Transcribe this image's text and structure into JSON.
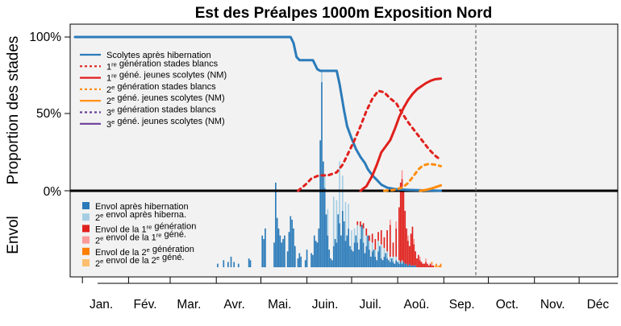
{
  "chart_data": {
    "type": "line",
    "title": "Est des Préalpes 1000m Exposition Nord",
    "ylabel_top": "Proportion des stades",
    "ylabel_bottom": "Envol",
    "ylim": [
      0,
      100
    ],
    "yticks": [
      "0%",
      "50%",
      "100%"
    ],
    "ytick_values": [
      0,
      50,
      100
    ],
    "x_domain_days": [
      0,
      365
    ],
    "months": [
      "Jan.",
      "Fév.",
      "Mar.",
      "Avr.",
      "Mai.",
      "Juin.",
      "Juil.",
      "Aoû.",
      "Sep.",
      "Oct.",
      "Nov.",
      "Déc"
    ],
    "current_day": 246,
    "grid": false,
    "panel_bg": "#f2f2f2",
    "line_legend": [
      {
        "main": "Scolytes après hibernation",
        "sup": "",
        "rest": "",
        "color": "#2b7bb9",
        "dash": false
      },
      {
        "main": "1",
        "sup": "re",
        "rest": " génération stades blancs",
        "color": "#e0201c",
        "dash": true
      },
      {
        "main": "1",
        "sup": "re",
        "rest": " géné. jeunes scolytes (NM)",
        "color": "#e0201c",
        "dash": false
      },
      {
        "main": "2",
        "sup": "e",
        "rest": " génération stades blancs",
        "color": "#ff8c0a",
        "dash": true
      },
      {
        "main": "2",
        "sup": "e",
        "rest": " géné. jeunes scolytes (NM)",
        "color": "#ff8c0a",
        "dash": false
      },
      {
        "main": "3",
        "sup": "e",
        "rest": " génération stades blancs",
        "color": "#6a3d9a",
        "dash": true
      },
      {
        "main": "3",
        "sup": "e",
        "rest": " géné. jeunes scolytes (NM)",
        "color": "#6a3d9a",
        "dash": false
      }
    ],
    "bar_legend": [
      {
        "main": "Envol après hibernation",
        "sup": "",
        "rest": "",
        "mid": "",
        "sup2": "",
        "rest2": "",
        "color": "#2b7bb9"
      },
      {
        "main": "2",
        "sup": "e",
        "rest": " envol après hiberna.",
        "mid": "",
        "sup2": "",
        "rest2": "",
        "color": "#a6cee3"
      },
      {
        "main": "Envol de la 1",
        "sup": "re",
        "rest": " génération",
        "mid": "",
        "sup2": "",
        "rest2": "",
        "color": "#e0201c"
      },
      {
        "main": "2",
        "sup": "e",
        "rest": " envol de la 1",
        "mid": "",
        "sup2": "re",
        "rest2": " géné.",
        "color": "#fb9a99"
      },
      {
        "main": "Envol de la 2",
        "sup": "e",
        "rest": " génération",
        "mid": "",
        "sup2": "",
        "rest2": "",
        "color": "#ff7f00"
      },
      {
        "main": "2",
        "sup": "e",
        "rest": " envol de la 2",
        "mid": "",
        "sup2": "e",
        "rest2": " géné.",
        "color": "#fdbf6f"
      }
    ],
    "series": [
      {
        "name": "Scolytes après hibernation",
        "color": "#2b7bb9",
        "dash": false,
        "points": [
          [
            0,
            100
          ],
          [
            60,
            100
          ],
          [
            100,
            100
          ],
          [
            145,
            100
          ],
          [
            147,
            96
          ],
          [
            149,
            87
          ],
          [
            151,
            85
          ],
          [
            160,
            85
          ],
          [
            163,
            79
          ],
          [
            165,
            78
          ],
          [
            176,
            78
          ],
          [
            178,
            69
          ],
          [
            181,
            52
          ],
          [
            183,
            42
          ],
          [
            186,
            34
          ],
          [
            189,
            27
          ],
          [
            192,
            22
          ],
          [
            195,
            18
          ],
          [
            197,
            14
          ],
          [
            200,
            10
          ],
          [
            203,
            7
          ],
          [
            206,
            4
          ],
          [
            210,
            2
          ],
          [
            216,
            1
          ],
          [
            225,
            0.5
          ],
          [
            246,
            0
          ]
        ]
      },
      {
        "name": "1re génération stades blancs",
        "color": "#e0201c",
        "dash": true,
        "points": [
          [
            150,
            0
          ],
          [
            155,
            4
          ],
          [
            159,
            8
          ],
          [
            164,
            10
          ],
          [
            170,
            10
          ],
          [
            176,
            12
          ],
          [
            180,
            17
          ],
          [
            184,
            25
          ],
          [
            188,
            33
          ],
          [
            192,
            42
          ],
          [
            196,
            52
          ],
          [
            200,
            60
          ],
          [
            204,
            65
          ],
          [
            208,
            64
          ],
          [
            212,
            60
          ],
          [
            216,
            57
          ],
          [
            219,
            52
          ],
          [
            223,
            46
          ],
          [
            226,
            42
          ],
          [
            230,
            37
          ],
          [
            234,
            32
          ],
          [
            238,
            27
          ],
          [
            242,
            23
          ],
          [
            246,
            20
          ]
        ]
      },
      {
        "name": "1re géné. jeunes scolytes (NM)",
        "color": "#e0201c",
        "dash": false,
        "points": [
          [
            192,
            0
          ],
          [
            196,
            3
          ],
          [
            200,
            10
          ],
          [
            203,
            17
          ],
          [
            206,
            25
          ],
          [
            209,
            29
          ],
          [
            212,
            33
          ],
          [
            215,
            40
          ],
          [
            218,
            48
          ],
          [
            221,
            54
          ],
          [
            224,
            59
          ],
          [
            227,
            63
          ],
          [
            230,
            66
          ],
          [
            233,
            68
          ],
          [
            236,
            70
          ],
          [
            239,
            71.5
          ],
          [
            242,
            72.5
          ],
          [
            246,
            73
          ]
        ]
      },
      {
        "name": "2e génération stades blancs",
        "color": "#ff8c0a",
        "dash": true,
        "points": [
          [
            208,
            0
          ],
          [
            214,
            0.5
          ],
          [
            220,
            2
          ],
          [
            224,
            5
          ],
          [
            228,
            10
          ],
          [
            231,
            14
          ],
          [
            234,
            16.5
          ],
          [
            238,
            17.5
          ],
          [
            242,
            17
          ],
          [
            246,
            16
          ]
        ]
      },
      {
        "name": "2e géné. jeunes scolytes (NM)",
        "color": "#ff8c0a",
        "dash": false,
        "points": [
          [
            232,
            0
          ],
          [
            236,
            0.5
          ],
          [
            240,
            1.5
          ],
          [
            243,
            2.5
          ],
          [
            246,
            3.5
          ]
        ]
      }
    ],
    "bars": {
      "max": 100,
      "emerge": [
        [
          96,
          2
        ],
        [
          100,
          4
        ],
        [
          103,
          3
        ],
        [
          105,
          6
        ],
        [
          107,
          3
        ],
        [
          110,
          2
        ],
        [
          117,
          5
        ],
        [
          118,
          4
        ],
        [
          126,
          18
        ],
        [
          127,
          16
        ],
        [
          128,
          22
        ],
        [
          134,
          14
        ],
        [
          135,
          48
        ],
        [
          136,
          28
        ],
        [
          137,
          22
        ],
        [
          138,
          18
        ],
        [
          139,
          14
        ],
        [
          140,
          16
        ],
        [
          141,
          18
        ],
        [
          143,
          9
        ],
        [
          144,
          20
        ],
        [
          145,
          29
        ],
        [
          146,
          27
        ],
        [
          147,
          22
        ],
        [
          148,
          12
        ],
        [
          150,
          5
        ],
        [
          151,
          8
        ],
        [
          152,
          6
        ],
        [
          155,
          4
        ],
        [
          156,
          10
        ],
        [
          159,
          8
        ],
        [
          160,
          7
        ],
        [
          161,
          18
        ],
        [
          162,
          15
        ],
        [
          163,
          14
        ],
        [
          164,
          22
        ],
        [
          165,
          72
        ],
        [
          166,
          105
        ],
        [
          167,
          60
        ],
        [
          168,
          45
        ],
        [
          169,
          30
        ],
        [
          170,
          18
        ],
        [
          171,
          10
        ],
        [
          172,
          5
        ],
        [
          173,
          4
        ],
        [
          174,
          12
        ],
        [
          175,
          16
        ],
        [
          176,
          14
        ],
        [
          177,
          30
        ],
        [
          178,
          25
        ],
        [
          179,
          18
        ],
        [
          180,
          32
        ],
        [
          181,
          26
        ],
        [
          182,
          15
        ],
        [
          183,
          18
        ],
        [
          184,
          22
        ],
        [
          185,
          12
        ],
        [
          186,
          10
        ],
        [
          187,
          9
        ],
        [
          188,
          14
        ],
        [
          189,
          18
        ],
        [
          190,
          14
        ],
        [
          191,
          10
        ],
        [
          192,
          16
        ],
        [
          193,
          24
        ],
        [
          194,
          14
        ],
        [
          195,
          8
        ],
        [
          196,
          12
        ],
        [
          197,
          18
        ],
        [
          198,
          10
        ],
        [
          199,
          6
        ],
        [
          200,
          9
        ],
        [
          201,
          10
        ],
        [
          202,
          6
        ],
        [
          203,
          4
        ],
        [
          204,
          9
        ],
        [
          205,
          12
        ],
        [
          206,
          5
        ],
        [
          207,
          4
        ],
        [
          208,
          6
        ],
        [
          209,
          8
        ],
        [
          210,
          5
        ],
        [
          211,
          4
        ],
        [
          212,
          3
        ],
        [
          213,
          5
        ],
        [
          214,
          3
        ],
        [
          215,
          2
        ],
        [
          216,
          4
        ],
        [
          217,
          3
        ],
        [
          218,
          2
        ],
        [
          219,
          3
        ],
        [
          220,
          2
        ],
        [
          221,
          3
        ],
        [
          222,
          2
        ],
        [
          223,
          2
        ],
        [
          224,
          1
        ],
        [
          225,
          2
        ],
        [
          226,
          1
        ],
        [
          227,
          1
        ],
        [
          228,
          1
        ],
        [
          229,
          1
        ]
      ],
      "emerge2": [
        [
          166,
          6
        ],
        [
          168,
          8
        ],
        [
          170,
          15
        ],
        [
          174,
          28
        ],
        [
          176,
          24
        ],
        [
          178,
          35
        ],
        [
          180,
          20
        ],
        [
          182,
          22
        ],
        [
          184,
          14
        ],
        [
          186,
          11
        ],
        [
          188,
          8
        ],
        [
          190,
          10
        ],
        [
          192,
          7
        ],
        [
          194,
          8
        ],
        [
          196,
          6
        ],
        [
          198,
          5
        ],
        [
          200,
          5
        ],
        [
          202,
          4
        ],
        [
          204,
          6
        ],
        [
          206,
          8
        ],
        [
          208,
          5
        ],
        [
          210,
          4
        ],
        [
          212,
          3
        ],
        [
          214,
          3
        ],
        [
          216,
          2
        ],
        [
          218,
          2
        ],
        [
          220,
          2
        ]
      ],
      "first": [
        [
          190,
          2
        ],
        [
          192,
          3
        ],
        [
          194,
          3
        ],
        [
          196,
          4
        ],
        [
          198,
          3
        ],
        [
          200,
          5
        ],
        [
          202,
          6
        ],
        [
          204,
          5
        ],
        [
          206,
          8
        ],
        [
          208,
          6
        ],
        [
          210,
          12
        ],
        [
          212,
          18
        ],
        [
          214,
          8
        ],
        [
          216,
          16
        ],
        [
          218,
          30
        ],
        [
          219,
          45
        ],
        [
          220,
          46
        ],
        [
          221,
          40
        ],
        [
          222,
          30
        ],
        [
          223,
          20
        ],
        [
          224,
          14
        ],
        [
          225,
          10
        ],
        [
          226,
          18
        ],
        [
          227,
          22
        ],
        [
          228,
          12
        ],
        [
          229,
          8
        ],
        [
          230,
          5
        ],
        [
          231,
          7
        ],
        [
          232,
          4
        ],
        [
          233,
          3
        ],
        [
          234,
          2
        ],
        [
          235,
          2
        ],
        [
          236,
          3
        ],
        [
          237,
          2
        ],
        [
          238,
          1
        ],
        [
          239,
          2
        ],
        [
          240,
          1
        ],
        [
          241,
          1
        ]
      ],
      "first2": [
        [
          212,
          3
        ],
        [
          216,
          4
        ],
        [
          220,
          5
        ],
        [
          224,
          3
        ],
        [
          228,
          3
        ],
        [
          232,
          2
        ],
        [
          236,
          2
        ],
        [
          240,
          1
        ]
      ],
      "second": [
        [
          240,
          1
        ],
        [
          243,
          2
        ],
        [
          245,
          1
        ],
        [
          246,
          2
        ]
      ],
      "second2": [
        [
          242,
          1
        ],
        [
          244,
          1
        ]
      ]
    }
  }
}
